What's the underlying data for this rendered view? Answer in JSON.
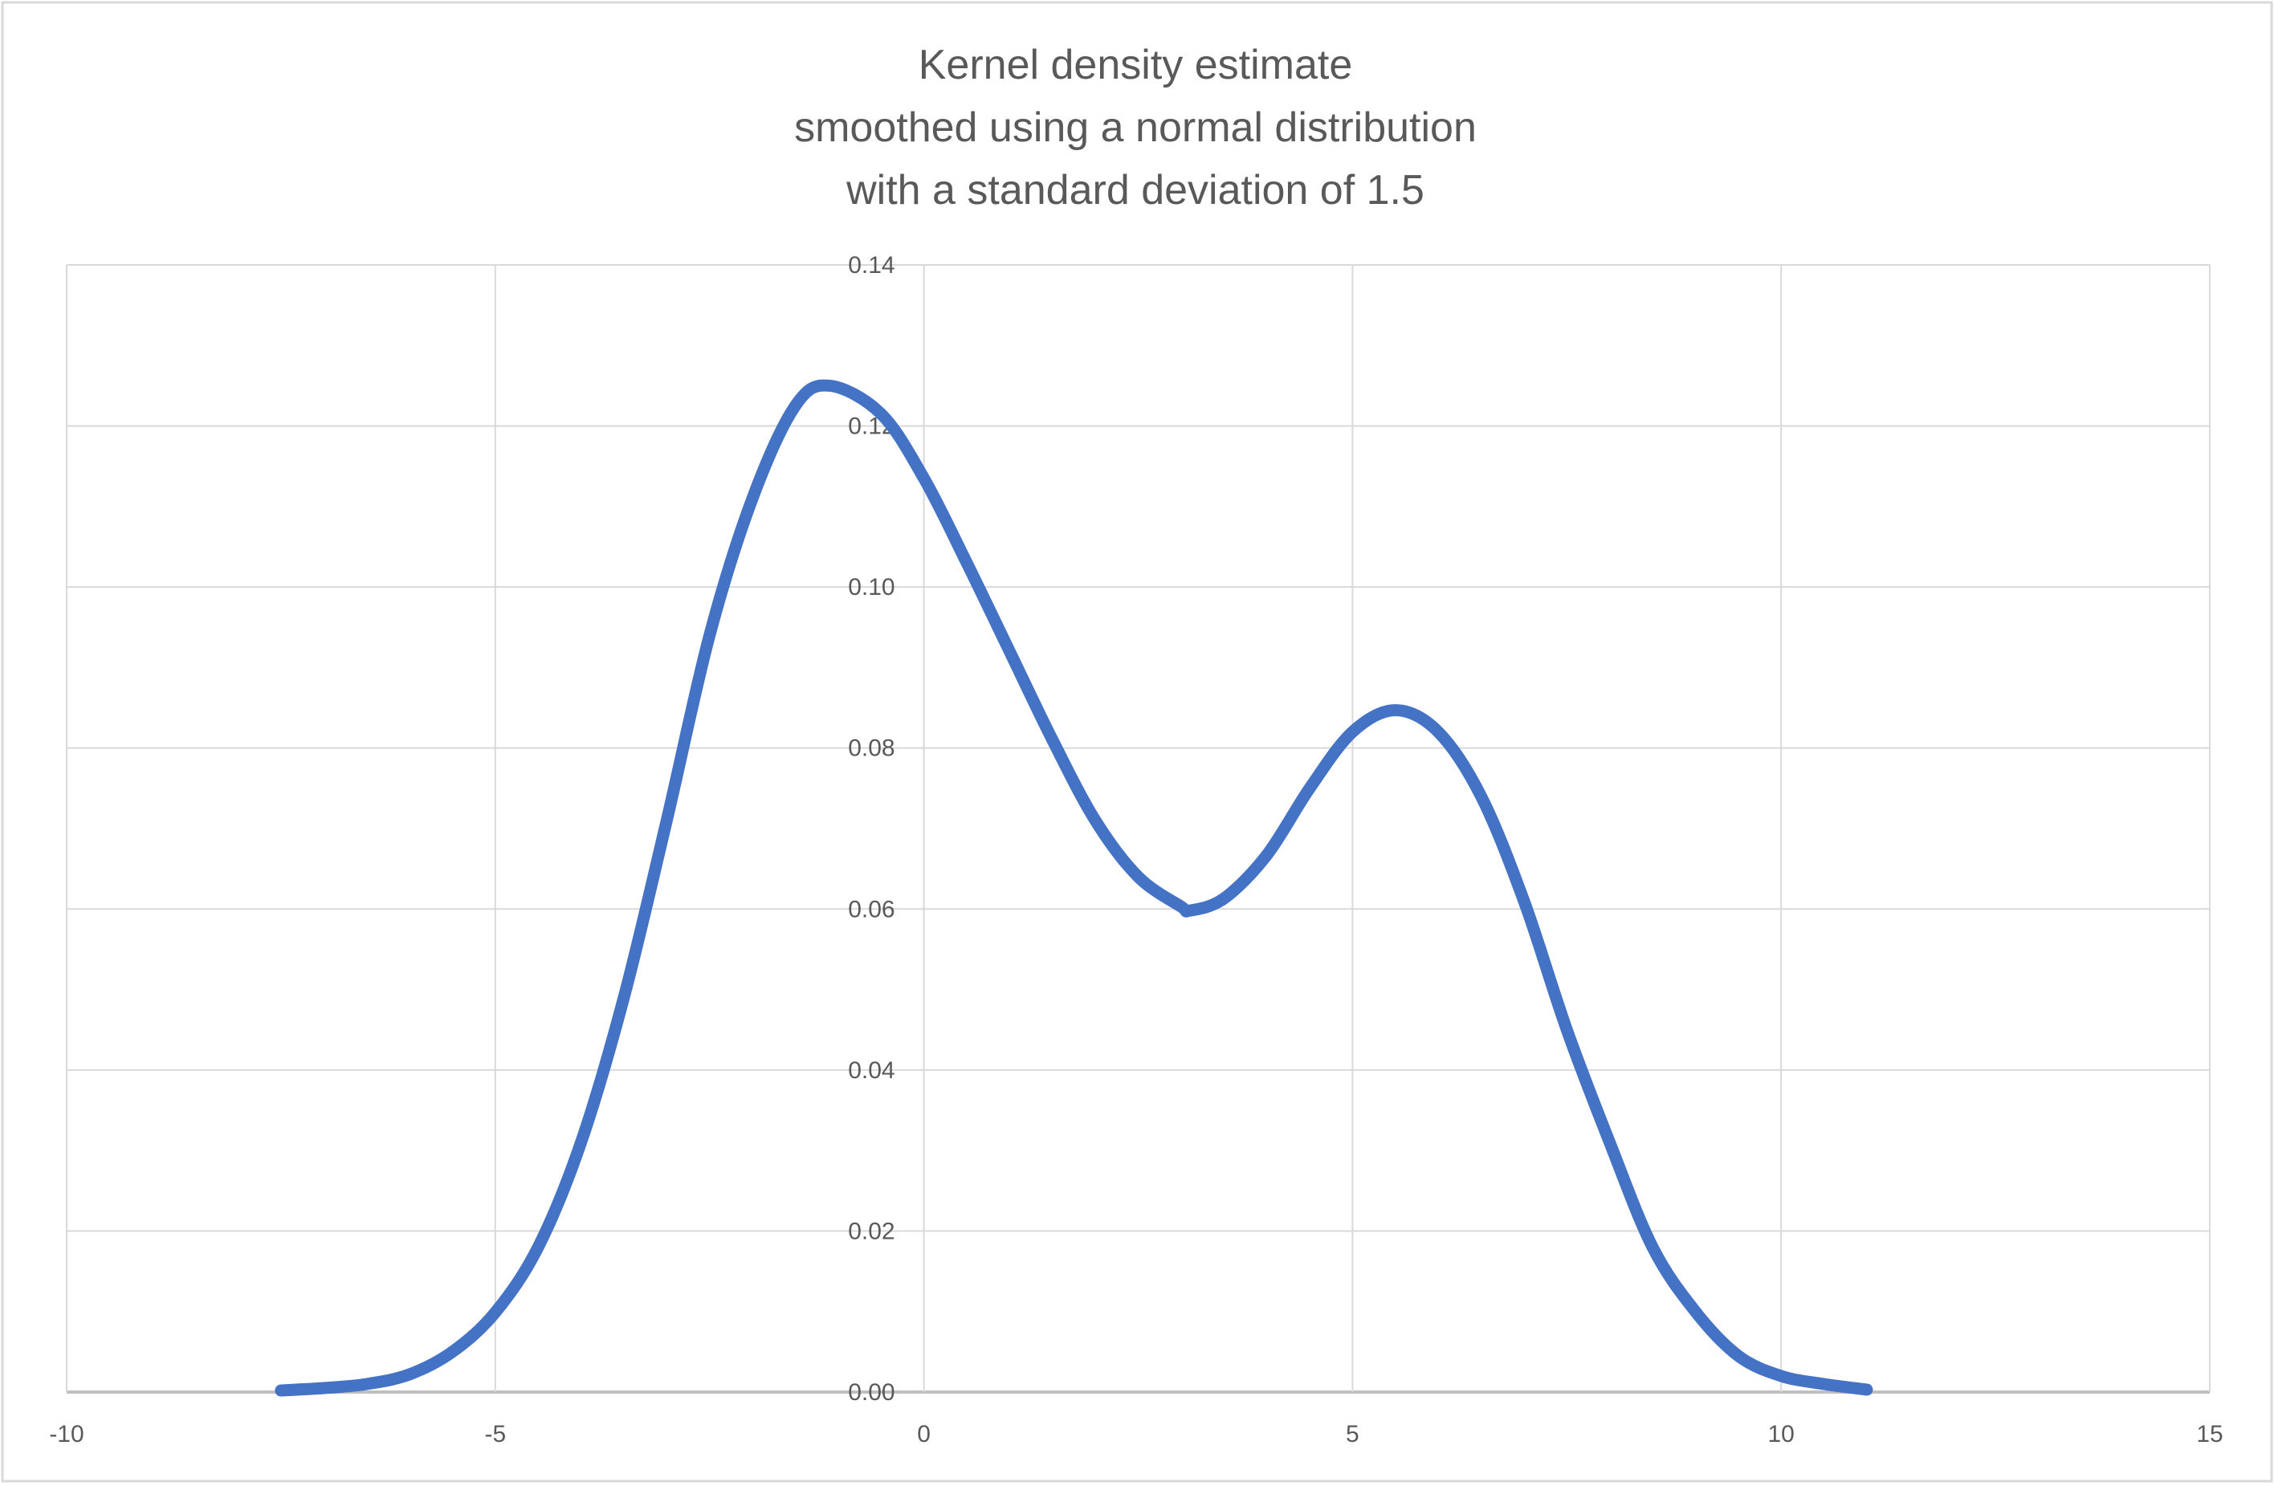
{
  "chart_data": {
    "type": "line",
    "title": [
      "Kernel density estimate",
      "smoothed using a normal distribution",
      "with a standard deviation of 1.5"
    ],
    "xlabel": "",
    "ylabel": "",
    "xlim": [
      -10,
      15
    ],
    "ylim": [
      0,
      0.14
    ],
    "x_ticks": [
      "-10",
      "-5",
      "0",
      "5",
      "10",
      "15"
    ],
    "x_tick_values": [
      -10,
      -5,
      0,
      5,
      10,
      15
    ],
    "y_ticks": [
      "0.00",
      "0.02",
      "0.04",
      "0.06",
      "0.08",
      "0.10",
      "0.12",
      "0.14"
    ],
    "y_tick_values": [
      0,
      0.02,
      0.04,
      0.06,
      0.08,
      0.1,
      0.12,
      0.14
    ],
    "grid": true,
    "legend": "none",
    "series": [
      {
        "color": "#4472C4",
        "x": [
          -7.5,
          -7,
          -6.5,
          -6,
          -5.5,
          -5,
          -4.5,
          -4,
          -3.5,
          -3,
          -2.5,
          -2,
          -1.5,
          -1.1,
          -0.5,
          0,
          0.5,
          1,
          1.5,
          2,
          2.5,
          3,
          3.1,
          3.5,
          4,
          4.5,
          5,
          5.5,
          6,
          6.5,
          7,
          7.5,
          8,
          8.5,
          9,
          9.5,
          10,
          10.5,
          11
        ],
        "y": [
          0.0002,
          0.0005,
          0.001,
          0.0022,
          0.005,
          0.0099,
          0.018,
          0.031,
          0.049,
          0.071,
          0.094,
          0.111,
          0.1225,
          0.125,
          0.1215,
          0.1135,
          0.103,
          0.092,
          0.081,
          0.071,
          0.064,
          0.0603,
          0.0598,
          0.0613,
          0.0667,
          0.075,
          0.082,
          0.0847,
          0.082,
          0.074,
          0.061,
          0.045,
          0.031,
          0.018,
          0.01,
          0.0045,
          0.002,
          0.001,
          0.0003
        ]
      }
    ]
  }
}
